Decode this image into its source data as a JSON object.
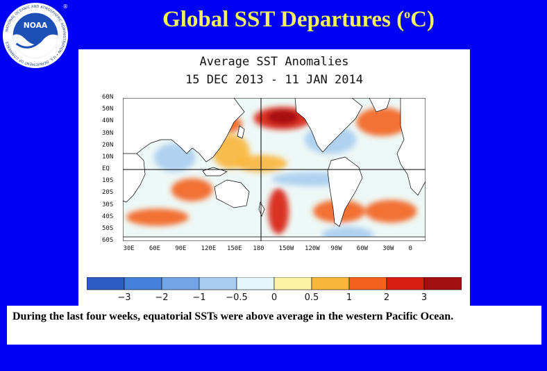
{
  "slide": {
    "title_main": "Global SST Departures (",
    "title_sup": "o",
    "title_end": "C)",
    "caption": "During the last four weeks, equatorial SSTs were above average in the western Pacific Ocean."
  },
  "logo": {
    "name": "NOAA",
    "ring_text": "NATIONAL OCEANIC AND ATMOSPHERIC ADMINISTRATION • U.S. DEPARTMENT OF COMMERCE",
    "registered": "®"
  },
  "chart_data": {
    "type": "heatmap",
    "title": "Average SST Anomalies",
    "subtitle": "15 DEC 2013 - 11 JAN 2014",
    "y_ticks": [
      "60N",
      "50N",
      "40N",
      "30N",
      "20N",
      "10N",
      "EQ",
      "10S",
      "20S",
      "30S",
      "40S",
      "50S",
      "60S"
    ],
    "x_ticks": [
      "30E",
      "60E",
      "90E",
      "120E",
      "150E",
      "180",
      "150W",
      "120W",
      "90W",
      "60W",
      "30W",
      "0"
    ],
    "xlim": [
      20,
      370
    ],
    "ylim": [
      -60,
      60
    ],
    "legend": {
      "units": "°C",
      "colors": [
        "#2c5cc4",
        "#4580dc",
        "#74a4e8",
        "#a8cdf0",
        "#e4f7fb",
        "#fdf2a4",
        "#f9b63a",
        "#f3621f",
        "#d81f12",
        "#a20f0f"
      ],
      "labels": [
        "−3",
        "−2",
        "−1",
        "−0.5",
        "0",
        "0.5",
        "1",
        "2",
        "3"
      ]
    },
    "anomaly_patches": [
      {
        "lon": 205,
        "lat": 43,
        "rx": 28,
        "ry": 8,
        "value": 3.0
      },
      {
        "lon": 205,
        "lat": 44,
        "rx": 15,
        "ry": 5,
        "value": 4.0
      },
      {
        "lon": 200,
        "lat": -35,
        "rx": 10,
        "ry": 16,
        "value": 2.5
      },
      {
        "lon": 60,
        "lat": -40,
        "rx": 30,
        "ry": 6,
        "value": 2.0
      },
      {
        "lon": 100,
        "lat": -17,
        "rx": 20,
        "ry": 8,
        "value": 1.5
      },
      {
        "lon": 270,
        "lat": -35,
        "rx": 25,
        "ry": 8,
        "value": 2.0
      },
      {
        "lon": 330,
        "lat": -35,
        "rx": 25,
        "ry": 8,
        "value": 2.0
      },
      {
        "lon": 320,
        "lat": 40,
        "rx": 25,
        "ry": 10,
        "value": 1.5
      },
      {
        "lon": 145,
        "lat": 15,
        "rx": 18,
        "ry": 12,
        "value": 0.7
      },
      {
        "lon": 140,
        "lat": 38,
        "rx": 15,
        "ry": 6,
        "value": 1.5
      },
      {
        "lon": 240,
        "lat": -8,
        "rx": 40,
        "ry": 5,
        "value": -0.7
      },
      {
        "lon": 280,
        "lat": -55,
        "rx": 25,
        "ry": 6,
        "value": -0.8
      },
      {
        "lon": 80,
        "lat": 10,
        "rx": 20,
        "ry": 10,
        "value": -0.6
      },
      {
        "lon": 260,
        "lat": 25,
        "rx": 25,
        "ry": 10,
        "value": -0.6
      },
      {
        "lon": 180,
        "lat": 5,
        "rx": 25,
        "ry": 6,
        "value": 0.8
      }
    ]
  }
}
